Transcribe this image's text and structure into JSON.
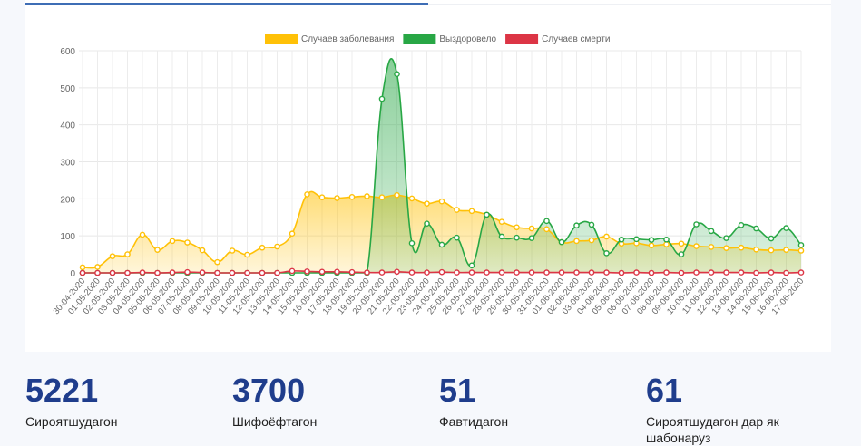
{
  "chart_data": {
    "type": "line",
    "legend_position": "top",
    "grid": true,
    "ylim": [
      0,
      600
    ],
    "yticks": [
      0,
      100,
      200,
      300,
      400,
      500,
      600
    ],
    "x": [
      "30-04-2020",
      "01-05-2020",
      "02-05-2020",
      "03-05-2020",
      "04-05-2020",
      "05-05-2020",
      "06-05-2020",
      "07-05-2020",
      "08-05-2020",
      "09-05-2020",
      "10-05-2020",
      "11-05-2020",
      "12-05-2020",
      "13-05-2020",
      "14-05-2020",
      "15-05-2020",
      "16-05-2020",
      "17-05-2020",
      "18-05-2020",
      "19-05-2020",
      "20-05-2020",
      "21-05-2020",
      "22-05-2020",
      "23-05-2020",
      "24-05-2020",
      "25-05-2020",
      "26-05-2020",
      "27-05-2020",
      "28-05-2020",
      "29-05-2020",
      "30-05-2020",
      "31-05-2020",
      "01-06-2020",
      "02-06-2020",
      "03-06-2020",
      "04-06-2020",
      "05-06-2020",
      "06-06-2020",
      "07-06-2020",
      "08-06-2020",
      "09-06-2020",
      "10-06-2020",
      "11-06-2020",
      "12-06-2020",
      "13-06-2020",
      "14-06-2020",
      "15-06-2020",
      "16-06-2020",
      "17-06-2020"
    ],
    "series": [
      {
        "name": "Случаев заболевания",
        "color": "#ffc107",
        "values": [
          15,
          16,
          45,
          50,
          103,
          62,
          86,
          82,
          61,
          29,
          60,
          49,
          68,
          71,
          106,
          212,
          204,
          202,
          205,
          207,
          204,
          210,
          201,
          187,
          193,
          170,
          167,
          157,
          138,
          123,
          120,
          118,
          83,
          86,
          88,
          98,
          79,
          80,
          74,
          77,
          79,
          72,
          70,
          67,
          68,
          63,
          61,
          62,
          60
        ]
      },
      {
        "name": "Выздоровело",
        "color": "#28a745",
        "values": [
          0,
          0,
          0,
          0,
          0,
          0,
          0,
          0,
          0,
          0,
          0,
          0,
          0,
          0,
          0,
          0,
          0,
          0,
          0,
          0,
          470,
          537,
          80,
          133,
          76,
          95,
          20,
          157,
          98,
          95,
          94,
          140,
          83,
          128,
          130,
          53,
          90,
          91,
          89,
          90,
          50,
          131,
          113,
          94,
          129,
          120,
          93,
          121,
          75
        ]
      },
      {
        "name": "Случаев смерти",
        "color": "#dc3545",
        "values": [
          0,
          0,
          0,
          0,
          1,
          0,
          1,
          2,
          1,
          0,
          0,
          0,
          0,
          0,
          5,
          4,
          3,
          3,
          2,
          1,
          1,
          3,
          1,
          1,
          2,
          1,
          1,
          1,
          1,
          1,
          1,
          1,
          1,
          1,
          1,
          1,
          0,
          1,
          0,
          1,
          0,
          1,
          1,
          1,
          1,
          0,
          1,
          0,
          1
        ]
      }
    ]
  },
  "stats": [
    {
      "value": "5221",
      "label": "Сироятшудагон"
    },
    {
      "value": "3700",
      "label": "Шифоёфтагон"
    },
    {
      "value": "51",
      "label": "Фавтидагон"
    },
    {
      "value": "61",
      "label": "Сироятшудагон дар як шабонаруз"
    }
  ]
}
